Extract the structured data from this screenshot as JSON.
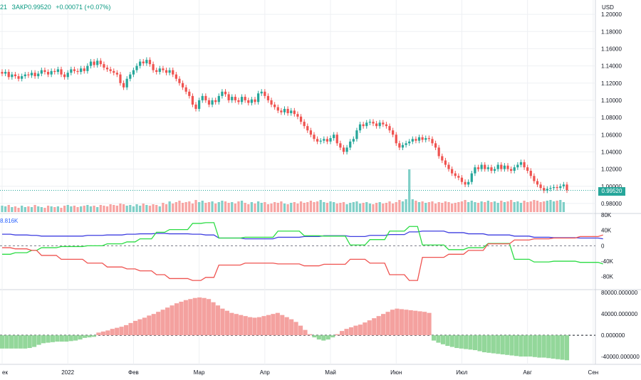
{
  "header": {
    "prefix": "21",
    "close": "ЗАКР0.99520",
    "change": "+0.00071 (+0.07%)"
  },
  "price_badge": "0.99520",
  "indicator_label": "8.816K",
  "colors": {
    "bull": "#26a69a",
    "bear": "#ef5350",
    "vol_bull": "#7fcfc7",
    "vol_bear": "#f7a4a2",
    "commercial": "#ef5350",
    "noncommercial": "#2bdc44",
    "total": "#3f3fe0",
    "net_pos": "#f4a19f",
    "net_neg": "#93d79a",
    "grid": "#eef0f3",
    "axis_text": "#131722"
  },
  "chart_data": [
    {
      "type": "candlestick",
      "currency_label": "USD",
      "last_price": 0.9952,
      "ylim": [
        0.97,
        1.21
      ],
      "y_ticks": [
        "1.20000",
        "1.18000",
        "1.16000",
        "1.14000",
        "1.12000",
        "1.10000",
        "1.08000",
        "1.06000",
        "1.04000",
        "1.02000",
        "1.00000",
        "0.98000"
      ],
      "x_ticks": [
        "ек",
        "2022",
        "Фев",
        "Мар",
        "Апр",
        "Май",
        "Июн",
        "Июл",
        "Авг",
        "Сен"
      ],
      "x_tick_index": [
        0,
        20,
        40,
        60,
        80,
        100,
        120,
        140,
        160,
        180
      ],
      "close": [
        1.131,
        1.133,
        1.127,
        1.13,
        1.128,
        1.125,
        1.128,
        1.13,
        1.129,
        1.132,
        1.128,
        1.131,
        1.135,
        1.133,
        1.13,
        1.134,
        1.133,
        1.136,
        1.13,
        1.127,
        1.132,
        1.136,
        1.134,
        1.133,
        1.137,
        1.134,
        1.14,
        1.145,
        1.141,
        1.146,
        1.142,
        1.138,
        1.136,
        1.134,
        1.132,
        1.13,
        1.12,
        1.115,
        1.125,
        1.13,
        1.135,
        1.14,
        1.145,
        1.143,
        1.147,
        1.142,
        1.135,
        1.133,
        1.137,
        1.135,
        1.132,
        1.135,
        1.13,
        1.125,
        1.12,
        1.115,
        1.11,
        1.105,
        1.095,
        1.09,
        1.1,
        1.105,
        1.1,
        1.095,
        1.1,
        1.098,
        1.105,
        1.11,
        1.107,
        1.1,
        1.104,
        1.1,
        1.098,
        1.104,
        1.1,
        1.097,
        1.101,
        1.098,
        1.108,
        1.11,
        1.105,
        1.1,
        1.095,
        1.092,
        1.088,
        1.086,
        1.09,
        1.085,
        1.088,
        1.084,
        1.081,
        1.075,
        1.07,
        1.065,
        1.06,
        1.055,
        1.052,
        1.053,
        1.055,
        1.052,
        1.056,
        1.06,
        1.05,
        1.045,
        1.04,
        1.045,
        1.052,
        1.055,
        1.065,
        1.072,
        1.07,
        1.074,
        1.075,
        1.073,
        1.07,
        1.074,
        1.072,
        1.07,
        1.065,
        1.06,
        1.05,
        1.045,
        1.048,
        1.05,
        1.052,
        1.055,
        1.053,
        1.057,
        1.054,
        1.056,
        1.055,
        1.05,
        1.045,
        1.035,
        1.03,
        1.025,
        1.02,
        1.015,
        1.012,
        1.01,
        1.005,
        1.002,
        1.005,
        1.015,
        1.022,
        1.02,
        1.025,
        1.02,
        1.022,
        1.018,
        1.02,
        1.025,
        1.02,
        1.024,
        1.02,
        1.018,
        1.022,
        1.025,
        1.028,
        1.022,
        1.018,
        1.012,
        1.006,
        1.002,
        0.998,
        0.995,
        0.997,
        0.998,
        0.999,
        0.998,
        1.0,
        1.002,
        0.9952
      ]
    },
    {
      "type": "bar",
      "name": "volume",
      "note": "volume histogram overlaid at the bottom of the price pane, one bar per candle",
      "values": [
        0.45,
        0.4,
        0.5,
        0.35,
        0.4,
        0.3,
        0.45,
        0.35,
        0.4,
        0.35,
        0.5,
        0.4,
        0.35,
        0.3,
        0.45,
        0.4,
        0.35,
        0.4,
        0.3,
        0.45,
        0.5,
        0.4,
        0.45,
        0.35,
        0.4,
        0.45,
        0.5,
        0.4,
        0.45,
        0.35,
        0.5,
        0.45,
        0.4,
        0.55,
        0.5,
        0.45,
        0.6,
        0.55,
        0.45,
        0.5,
        0.4,
        0.55,
        0.45,
        0.6,
        0.5,
        0.45,
        0.55,
        0.5,
        0.4,
        0.65,
        0.55,
        0.75,
        0.6,
        0.7,
        0.8,
        0.65,
        0.7,
        0.75,
        0.6,
        0.85,
        0.7,
        0.8,
        0.65,
        0.7,
        0.75,
        0.6,
        0.7,
        0.8,
        0.75,
        0.65,
        0.7,
        0.6,
        0.75,
        0.8,
        0.65,
        0.55,
        0.7,
        0.6,
        0.75,
        0.65,
        0.7,
        0.55,
        0.6,
        0.7,
        0.65,
        0.75,
        0.6,
        0.55,
        0.65,
        0.7,
        0.6,
        0.75,
        0.65,
        0.7,
        0.8,
        0.7,
        0.75,
        0.85,
        0.7,
        0.65,
        0.75,
        0.7,
        0.6,
        0.65,
        0.7,
        0.55,
        0.65,
        0.7,
        0.75,
        0.6,
        0.65,
        0.7,
        0.6,
        0.55,
        0.65,
        0.7,
        0.6,
        0.65,
        0.75,
        0.6,
        0.7,
        0.85,
        0.75,
        0.9,
        3.0,
        0.9,
        0.8,
        0.7,
        0.75,
        0.65,
        0.7,
        0.75,
        0.6,
        0.7,
        0.65,
        0.75,
        0.7,
        0.6,
        0.65,
        0.7,
        0.75,
        0.85,
        0.7,
        0.8,
        0.7,
        0.65,
        0.75,
        0.7,
        0.8,
        0.7,
        0.75,
        0.65,
        0.8,
        0.7,
        0.75,
        0.85,
        0.7,
        0.75,
        0.65,
        0.8,
        0.7,
        0.75,
        0.85,
        0.8,
        0.7,
        0.75,
        0.8,
        0.85,
        0.75,
        0.8,
        0.85,
        0.7
      ]
    },
    {
      "type": "line",
      "name": "positions",
      "ylim": [
        -110,
        80
      ],
      "y_ticks": [
        "80K",
        "40K",
        "0",
        "-40K",
        "-80K"
      ],
      "y_tick_values": [
        80,
        40,
        0,
        -40,
        -80
      ],
      "x_index": [
        0,
        4,
        9,
        12,
        18,
        26,
        32,
        38,
        42,
        47,
        51,
        58,
        62,
        66,
        74,
        84,
        92,
        98,
        106,
        112,
        118,
        124,
        128,
        136,
        142,
        148,
        156,
        162,
        168,
        176,
        183
      ],
      "series": [
        {
          "color_key": "total",
          "values": [
            30,
            28,
            27,
            25,
            25,
            27,
            28,
            30,
            31,
            32,
            31,
            30,
            28,
            20,
            18,
            22,
            24,
            26,
            24,
            27,
            29,
            36,
            38,
            34,
            31,
            28,
            25,
            22,
            21,
            20,
            18
          ]
        },
        {
          "color_key": "noncommercial",
          "values": [
            -22,
            -18,
            -12,
            -5,
            -2,
            0,
            5,
            10,
            18,
            35,
            42,
            58,
            60,
            20,
            22,
            38,
            26,
            25,
            2,
            16,
            38,
            50,
            2,
            -10,
            -5,
            6,
            -35,
            -42,
            -40,
            -43,
            -47
          ]
        },
        {
          "color_key": "commercial",
          "values": [
            -5,
            -8,
            -12,
            -25,
            -35,
            -45,
            -55,
            -60,
            -65,
            -75,
            -85,
            -90,
            -82,
            -50,
            -45,
            -47,
            -52,
            -48,
            -35,
            -45,
            -75,
            -90,
            -30,
            -22,
            -12,
            5,
            15,
            18,
            20,
            24,
            28
          ]
        }
      ]
    },
    {
      "type": "bar",
      "name": "net position",
      "ylim": [
        -52000,
        83000
      ],
      "y_ticks": [
        "80000.000000",
        "40000.000000",
        "0.000000",
        "-40000.000000"
      ],
      "y_tick_values": [
        80000,
        40000,
        0,
        -40000
      ],
      "values": [
        -25000,
        -25000,
        -25000,
        -25000,
        -25000,
        -25000,
        -24000,
        -22000,
        -18000,
        -15000,
        -14000,
        -13000,
        -12000,
        -12000,
        -12000,
        -11000,
        -10000,
        -8000,
        -5000,
        -4000,
        -3000,
        5000,
        7000,
        9000,
        12000,
        14000,
        16000,
        19000,
        23000,
        27000,
        30000,
        33000,
        37000,
        40000,
        44000,
        48000,
        52000,
        56000,
        60000,
        63000,
        66000,
        68000,
        70000,
        71000,
        70000,
        68000,
        62000,
        56000,
        50000,
        46000,
        42000,
        40000,
        38000,
        36000,
        34000,
        33000,
        34000,
        36000,
        38000,
        40000,
        42000,
        38000,
        34000,
        30000,
        25000,
        18000,
        10000,
        2000,
        -4000,
        -8000,
        -10000,
        -8000,
        -4000,
        2000,
        8000,
        12000,
        15000,
        18000,
        20000,
        24000,
        28000,
        32000,
        36000,
        40000,
        44000,
        48000,
        50000,
        49000,
        48000,
        47000,
        46000,
        45000,
        44000,
        42000,
        -10000,
        -14000,
        -17000,
        -20000,
        -22000,
        -24000,
        -25000,
        -26000,
        -27000,
        -28000,
        -30000,
        -32000,
        -33000,
        -34000,
        -35000,
        -36000,
        -37000,
        -38000,
        -39000,
        -40000,
        -40000,
        -40000,
        -41000,
        -42000,
        -42000,
        -43000,
        -44000,
        -45000,
        -46000,
        -47000
      ]
    }
  ]
}
